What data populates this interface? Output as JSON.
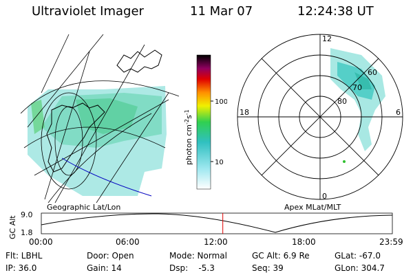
{
  "header": {
    "instrument": "Ultraviolet Imager",
    "date": "11 Mar 07",
    "time": "12:24:38 UT"
  },
  "left_panel": {
    "label": "Geographic Lat/Lon"
  },
  "right_panel": {
    "label": "Apex MLat/MLT",
    "mlt_labels": [
      "12",
      "18",
      "6",
      "0"
    ],
    "lat_labels": [
      "60",
      "70",
      "80"
    ]
  },
  "colorbar": {
    "unit_label": "photon cm",
    "unit_exp1": "-2",
    "unit_s": "s",
    "unit_exp2": "-1",
    "ticks": [
      "100",
      "10"
    ]
  },
  "timeline": {
    "axis_label": "GC Alt",
    "y_ticks": [
      "9.0",
      "1.8"
    ],
    "x_ticks": [
      "00:00",
      "06:00",
      "12:00",
      "18:00",
      "23:59"
    ],
    "current_time_fraction": 0.517
  },
  "info": {
    "filter": "Flt: LBHL",
    "door": "Door: Open",
    "mode": "Mode: Normal",
    "gc_alt": "GC Alt: 6.9 Re",
    "glat": "GLat: -67.0",
    "ip": "IP: 36.0",
    "gain": "Gain: 14",
    "dsp": "Dsp:    -5.3",
    "seq": "Seq: 39",
    "glon": "GLon: 304.7"
  }
}
